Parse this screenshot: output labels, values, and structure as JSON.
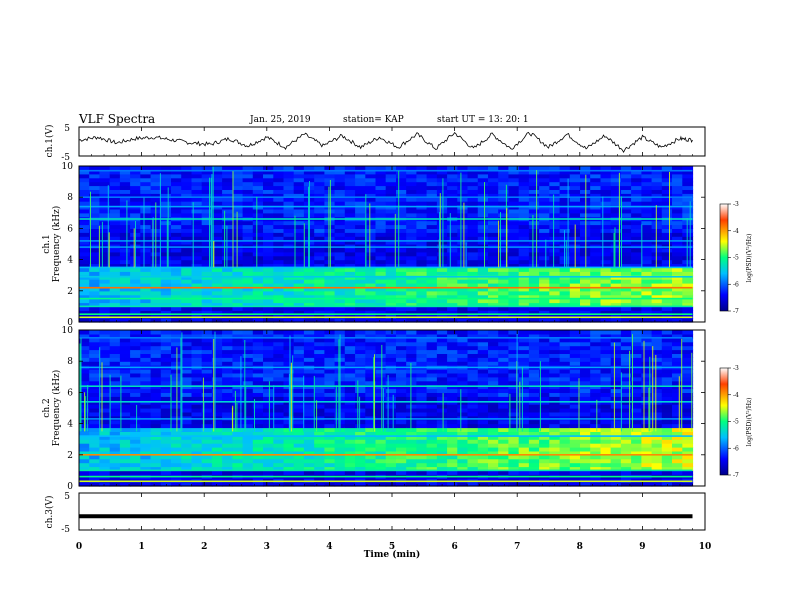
{
  "header": {
    "title": "VLF Spectra",
    "date": "Jan. 25, 2019",
    "station": "station= KAP",
    "start": "start  UT  =   13: 20: 1"
  },
  "chart_data": [
    {
      "type": "line",
      "panel": "ch1-waveform",
      "ylabel": "ch.1(V)",
      "ylim": [
        -5,
        5
      ],
      "yticks": [
        "5",
        "-5"
      ],
      "xlim": [
        0,
        10
      ],
      "series": [
        {
          "x": [
            0,
            0.3,
            0.6,
            0.9,
            1.2,
            1.5,
            1.8,
            2.1,
            2.4,
            2.7,
            3.0,
            3.3,
            3.6,
            3.9,
            4.2,
            4.5,
            4.8,
            5.1,
            5.4,
            5.7,
            6.0,
            6.3,
            6.6,
            6.9,
            7.2,
            7.5,
            7.8,
            8.1,
            8.4,
            8.7,
            9.0,
            9.3,
            9.6,
            9.8
          ],
          "values": [
            0.5,
            1.5,
            -0.5,
            1.0,
            1.5,
            0.5,
            -0.5,
            -1.0,
            1.0,
            -1.5,
            1.5,
            -2.0,
            2.5,
            -1.5,
            2.0,
            -2.0,
            1.5,
            -2.0,
            2.5,
            -2.5,
            3.0,
            -2.5,
            2.5,
            -2.5,
            3.0,
            -2.0,
            2.5,
            -2.5,
            2.0,
            -3.0,
            1.5,
            -2.0,
            1.0,
            0.5
          ]
        }
      ]
    },
    {
      "type": "heatmap",
      "panel": "ch1-spectrogram",
      "ylabel": "ch.1",
      "ylabel2": "Frequency (kHz)",
      "ylim": [
        0,
        10
      ],
      "yticks": [
        "0",
        "2",
        "4",
        "6",
        "8",
        "10"
      ],
      "xlim": [
        0,
        10
      ],
      "colorbar": {
        "label": "log(PSD)(V²/Hz)",
        "range": [
          -7,
          -3
        ],
        "ticks": [
          "-3",
          "-4",
          "-5",
          "-6",
          "-7"
        ]
      },
      "bands": [
        {
          "f": 0.3,
          "level": -4.5
        },
        {
          "f": 0.5,
          "level": -5.0
        },
        {
          "f": 1.0,
          "level": -5.2
        },
        {
          "f": 1.5,
          "level": -5.0
        },
        {
          "f": 2.2,
          "level": -3.8
        },
        {
          "f": 2.9,
          "level": -5.5
        },
        {
          "f": 3.5,
          "level": -5.6
        },
        {
          "f": 4.8,
          "level": -5.8
        },
        {
          "f": 5.2,
          "level": -5.8
        },
        {
          "f": 6.6,
          "level": -5.3
        },
        {
          "f": 7.4,
          "level": -5.7
        },
        {
          "f": 8.0,
          "level": -5.9
        },
        {
          "f": 9.7,
          "level": -5.9
        }
      ],
      "broadband": {
        "f_low": 0.8,
        "f_high": 3.4,
        "level_start": -5.6,
        "level_end": -4.6
      }
    },
    {
      "type": "heatmap",
      "panel": "ch2-spectrogram",
      "ylabel": "ch.2",
      "ylabel2": "Frequency (kHz)",
      "ylim": [
        0,
        10
      ],
      "yticks": [
        "0",
        "2",
        "4",
        "6",
        "8",
        "10"
      ],
      "xlim": [
        0,
        10
      ],
      "colorbar": {
        "label": "log(PSD)(V²/Hz)",
        "range": [
          -7,
          -3
        ],
        "ticks": [
          "-3",
          "-4",
          "-5",
          "-6",
          "-7"
        ]
      },
      "bands": [
        {
          "f": 0.3,
          "level": -4.5
        },
        {
          "f": 0.6,
          "level": -5.0
        },
        {
          "f": 1.0,
          "level": -5.2
        },
        {
          "f": 2.0,
          "level": -3.9
        },
        {
          "f": 3.2,
          "level": -5.6
        },
        {
          "f": 4.3,
          "level": -5.8
        },
        {
          "f": 5.4,
          "level": -5.4
        },
        {
          "f": 6.4,
          "level": -5.3
        },
        {
          "f": 7.6,
          "level": -5.7
        },
        {
          "f": 9.5,
          "level": -5.9
        }
      ],
      "broadband": {
        "f_low": 0.8,
        "f_high": 3.6,
        "level_start": -5.6,
        "level_end": -4.5
      }
    },
    {
      "type": "line",
      "panel": "ch3-waveform",
      "ylabel": "ch.3(V)",
      "ylim": [
        -5,
        5
      ],
      "yticks": [
        "5",
        "-5"
      ],
      "xlim": [
        0,
        10
      ],
      "series": [
        {
          "x": [
            0,
            9.8
          ],
          "values": [
            -1.3,
            -1.3
          ]
        }
      ]
    }
  ],
  "xaxis": {
    "label": "Time (min)",
    "ticks": [
      "0",
      "1",
      "2",
      "3",
      "4",
      "5",
      "6",
      "7",
      "8",
      "9",
      "10"
    ]
  }
}
